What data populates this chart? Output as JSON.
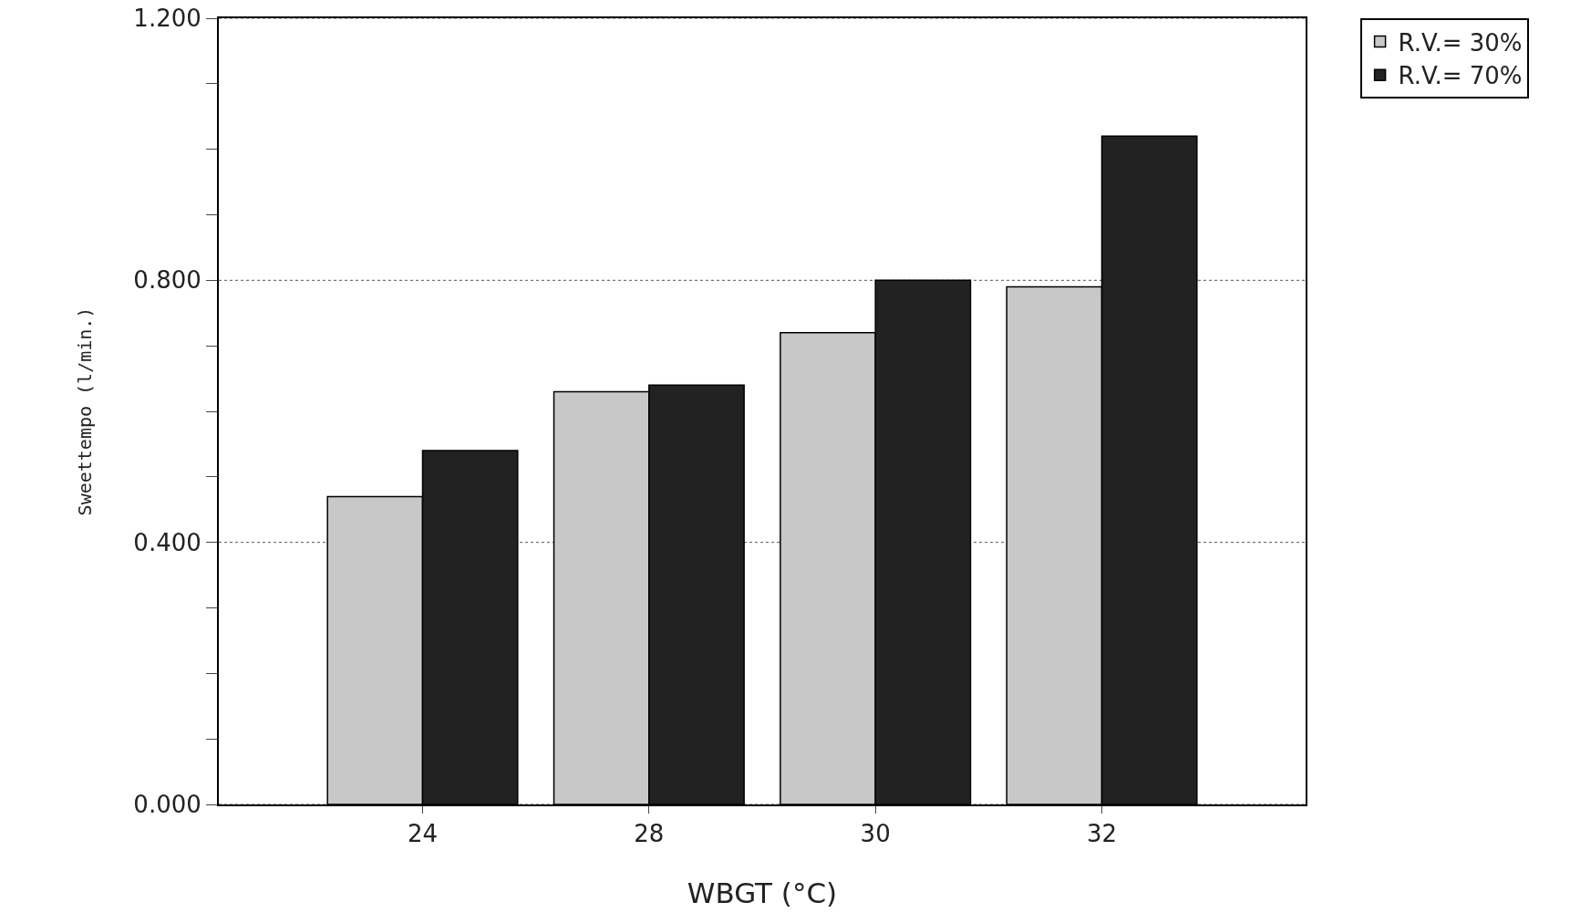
{
  "chart_data": {
    "type": "bar",
    "xlabel": "WBGT (°C)",
    "ylabel": "Sweettempo (l/min.)",
    "categories": [
      "24",
      "28",
      "30",
      "32"
    ],
    "series": [
      {
        "name": "R.V.= 30%",
        "color": "#c8c8c8",
        "values": [
          0.47,
          0.63,
          0.72,
          0.79
        ]
      },
      {
        "name": "R.V.= 70%",
        "color": "#222222",
        "values": [
          0.54,
          0.64,
          0.8,
          1.02
        ]
      }
    ],
    "ylim": [
      0,
      1.2
    ],
    "yticks": [
      {
        "value": 0,
        "label": "0.000"
      },
      {
        "value": 0.1,
        "label": null
      },
      {
        "value": 0.2,
        "label": null
      },
      {
        "value": 0.3,
        "label": null
      },
      {
        "value": 0.4,
        "label": "0.400"
      },
      {
        "value": 0.5,
        "label": null
      },
      {
        "value": 0.6,
        "label": null
      },
      {
        "value": 0.7,
        "label": null
      },
      {
        "value": 0.8,
        "label": "0.800"
      },
      {
        "value": 0.9,
        "label": null
      },
      {
        "value": 1.0,
        "label": null
      },
      {
        "value": 1.1,
        "label": null
      },
      {
        "value": 1.2,
        "label": "1.200"
      }
    ],
    "grid": "y",
    "legend": "top right"
  }
}
